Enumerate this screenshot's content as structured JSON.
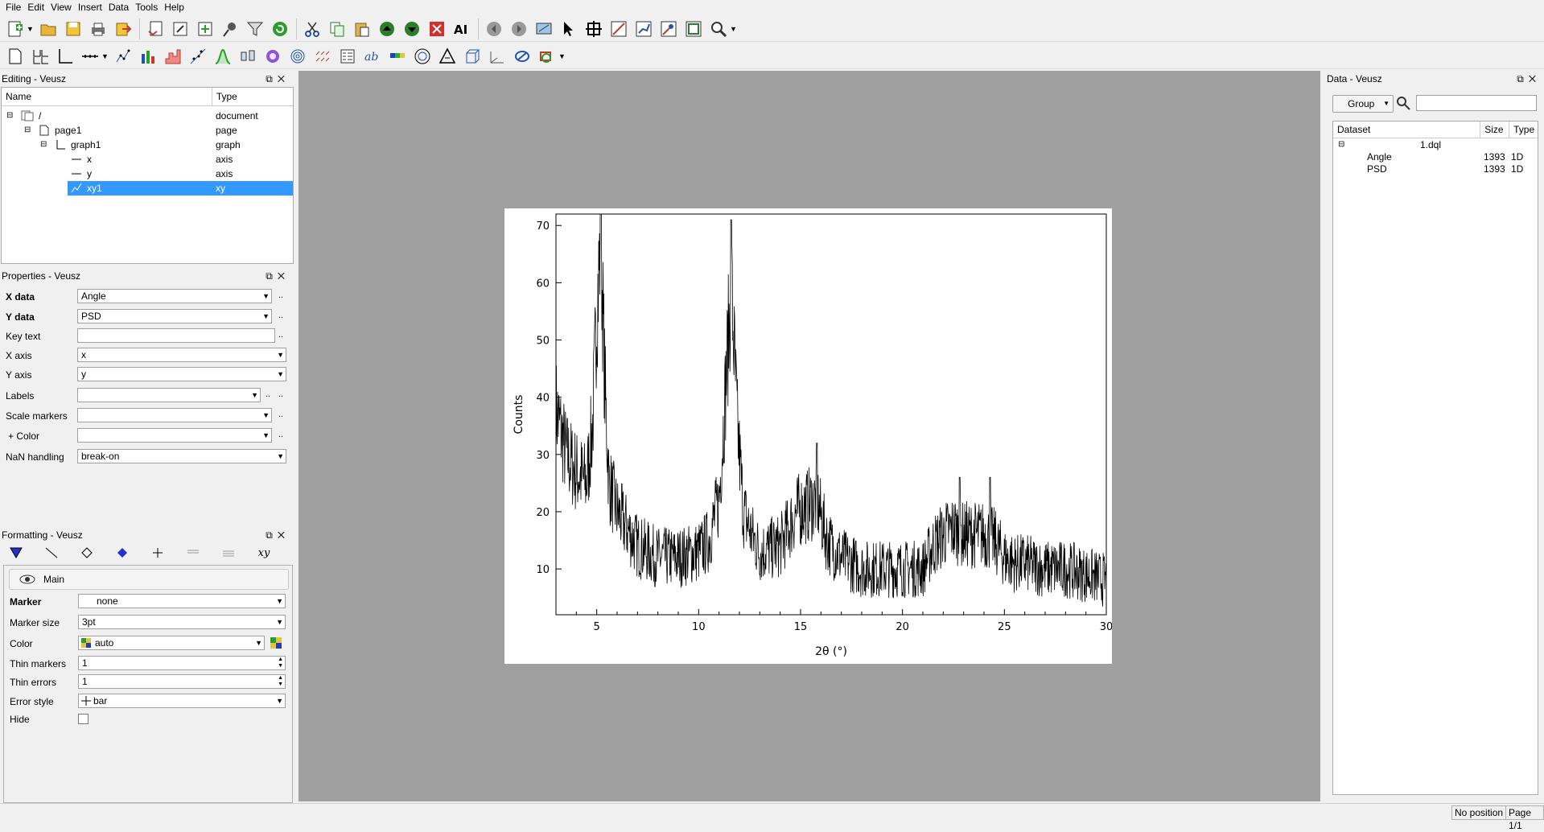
{
  "menu": [
    "File",
    "Edit",
    "View",
    "Insert",
    "Data",
    "Tools",
    "Help"
  ],
  "editing_panel": {
    "title": "Editing - Veusz",
    "columns": [
      "Name",
      "Type"
    ],
    "rows": [
      {
        "name": "/",
        "type": "document"
      },
      {
        "name": "page1",
        "type": "page"
      },
      {
        "name": "graph1",
        "type": "graph"
      },
      {
        "name": "x",
        "type": "axis"
      },
      {
        "name": "y",
        "type": "axis"
      },
      {
        "name": "xy1",
        "type": "xy"
      }
    ],
    "selected": "xy1"
  },
  "properties_panel": {
    "title": "Properties - Veusz",
    "rows": [
      {
        "label": "X data",
        "value": "Angle",
        "bold": true
      },
      {
        "label": "Y data",
        "value": "PSD",
        "bold": true
      },
      {
        "label": "Key text",
        "value": ""
      },
      {
        "label": "X axis",
        "value": "x"
      },
      {
        "label": "Y axis",
        "value": "y"
      },
      {
        "label": "Labels",
        "value": ""
      },
      {
        "label": "Scale markers",
        "value": ""
      },
      {
        "label": "+ Color",
        "value": ""
      },
      {
        "label": "NaN handling",
        "value": "break-on"
      }
    ]
  },
  "formatting_panel": {
    "title": "Formatting - Veusz",
    "tabs": [
      "marker-tab",
      "line-tab",
      "fill-tab",
      "marker-fill-tab",
      "error-bar-tab",
      "fill-below-tab",
      "fill-above-tab",
      "label-tab"
    ],
    "tab_label_xy": "xy",
    "section": "Main",
    "rows": [
      {
        "label": "Marker",
        "value": "none",
        "bold": true
      },
      {
        "label": "Marker size",
        "value": "3pt"
      },
      {
        "label": "Color",
        "value": "auto"
      },
      {
        "label": "Thin markers",
        "value": "1"
      },
      {
        "label": "Thin errors",
        "value": "1"
      },
      {
        "label": "Error style",
        "value": "bar"
      },
      {
        "label": "Hide",
        "value": ""
      }
    ]
  },
  "data_panel": {
    "title": "Data - Veusz",
    "group_button": "Group",
    "search_placeholder": "",
    "columns": [
      "Dataset",
      "Size",
      "Type"
    ],
    "file": "1.dql",
    "datasets": [
      {
        "name": "Angle",
        "size": "1393",
        "type": "1D"
      },
      {
        "name": "PSD",
        "size": "1393",
        "type": "1D"
      }
    ]
  },
  "status": {
    "position": "No position",
    "page": "Page 1/1"
  },
  "chart_data": {
    "type": "line",
    "xlabel": "2θ (°)",
    "ylabel": "Counts",
    "xlim": [
      3,
      30
    ],
    "ylim": [
      2,
      72
    ],
    "xticks": [
      5,
      10,
      15,
      20,
      25,
      30
    ],
    "yticks": [
      10,
      20,
      30,
      40,
      50,
      60,
      70
    ],
    "peaks": [
      {
        "x": 5.2,
        "y": 72
      },
      {
        "x": 11.6,
        "y": 71
      },
      {
        "x": 15.8,
        "y": 32
      },
      {
        "x": 22.8,
        "y": 26
      },
      {
        "x": 24.3,
        "y": 26
      }
    ],
    "profile": {
      "x": [
        3.0,
        3.5,
        4.0,
        4.5,
        4.8,
        5.0,
        5.2,
        5.4,
        5.6,
        6.0,
        6.5,
        7.0,
        8.0,
        9.0,
        10.0,
        10.5,
        11.0,
        11.3,
        11.6,
        11.9,
        12.2,
        12.6,
        13.0,
        14.0,
        14.8,
        15.3,
        15.8,
        16.3,
        17.0,
        18.0,
        19.0,
        20.0,
        21.0,
        21.5,
        22.0,
        22.5,
        23.0,
        23.5,
        24.0,
        24.5,
        25.0,
        25.5,
        26.0,
        27.0,
        28.0,
        29.0,
        30.0
      ],
      "y": [
        38,
        30,
        27,
        25,
        35,
        55,
        68,
        42,
        25,
        20,
        17,
        14,
        12,
        12,
        13,
        15,
        22,
        40,
        60,
        35,
        20,
        16,
        13,
        14,
        20,
        21,
        22,
        15,
        12,
        10,
        10,
        10,
        10,
        14,
        16,
        17,
        16,
        16,
        16,
        15,
        12,
        11,
        11,
        10,
        10,
        9,
        8
      ]
    },
    "noise_amplitude": 6,
    "series": [
      {
        "name": "PSD",
        "color": "#000000"
      }
    ],
    "grid": false
  }
}
